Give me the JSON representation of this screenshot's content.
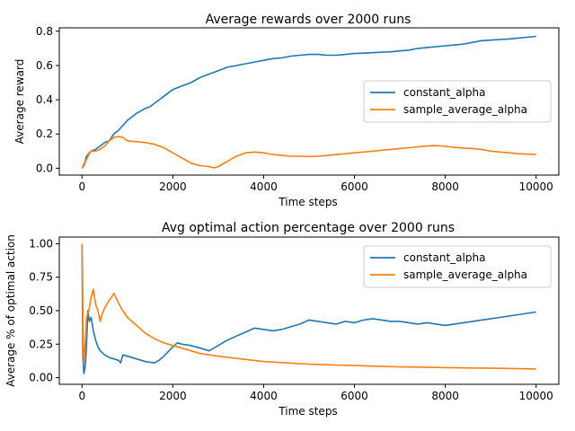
{
  "chart_data": [
    {
      "type": "line",
      "title": "Average rewards over 2000 runs",
      "xlabel": "Time steps",
      "ylabel": "Average reward",
      "xlim": [
        -500,
        10500
      ],
      "ylim": [
        -0.04,
        0.82
      ],
      "xticks": [
        0,
        2000,
        4000,
        6000,
        8000,
        10000
      ],
      "xtick_labels": [
        "0",
        "2000",
        "4000",
        "6000",
        "8000",
        "10000"
      ],
      "yticks": [
        0.0,
        0.2,
        0.4,
        0.6,
        0.8
      ],
      "ytick_labels": [
        "0.0",
        "0.2",
        "0.4",
        "0.6",
        "0.8"
      ],
      "legend_position": "center-right",
      "grid": false,
      "series": [
        {
          "name": "constant_alpha",
          "color": "#1f77b4",
          "x": [
            0,
            50,
            100,
            200,
            300,
            400,
            500,
            600,
            700,
            800,
            900,
            1000,
            1200,
            1400,
            1500,
            1600,
            1700,
            1800,
            2000,
            2200,
            2400,
            2600,
            2800,
            3000,
            3200,
            3400,
            3600,
            3800,
            4000,
            4200,
            4400,
            4600,
            4800,
            5000,
            5200,
            5400,
            5600,
            5800,
            6000,
            6200,
            6400,
            6600,
            6800,
            7000,
            7200,
            7400,
            7600,
            7800,
            8000,
            8200,
            8400,
            8600,
            8800,
            9000,
            9200,
            9400,
            9600,
            9800,
            10000
          ],
          "values": [
            0.0,
            0.02,
            0.07,
            0.1,
            0.11,
            0.13,
            0.15,
            0.16,
            0.2,
            0.22,
            0.25,
            0.28,
            0.32,
            0.35,
            0.36,
            0.38,
            0.4,
            0.42,
            0.46,
            0.48,
            0.5,
            0.53,
            0.55,
            0.57,
            0.59,
            0.6,
            0.61,
            0.62,
            0.63,
            0.64,
            0.645,
            0.655,
            0.66,
            0.665,
            0.665,
            0.66,
            0.66,
            0.665,
            0.67,
            0.672,
            0.675,
            0.678,
            0.68,
            0.685,
            0.69,
            0.7,
            0.705,
            0.71,
            0.715,
            0.72,
            0.725,
            0.735,
            0.745,
            0.748,
            0.752,
            0.755,
            0.76,
            0.765,
            0.77
          ]
        },
        {
          "name": "sample_average_alpha",
          "color": "#ff7f0e",
          "x": [
            0,
            50,
            100,
            150,
            200,
            300,
            400,
            500,
            600,
            700,
            800,
            900,
            1000,
            1200,
            1400,
            1600,
            1800,
            2000,
            2200,
            2400,
            2600,
            2800,
            2900,
            3000,
            3200,
            3400,
            3600,
            3800,
            4000,
            4200,
            4400,
            4600,
            4800,
            5000,
            5200,
            5400,
            5600,
            5800,
            6000,
            6200,
            6400,
            6600,
            6800,
            7000,
            7200,
            7400,
            7600,
            7800,
            8000,
            8200,
            8400,
            8600,
            8800,
            9000,
            9200,
            9400,
            9600,
            9800,
            10000
          ],
          "values": [
            0.0,
            0.03,
            0.05,
            0.08,
            0.1,
            0.1,
            0.11,
            0.13,
            0.16,
            0.18,
            0.185,
            0.18,
            0.16,
            0.155,
            0.15,
            0.14,
            0.12,
            0.09,
            0.06,
            0.03,
            0.015,
            0.01,
            0.002,
            0.01,
            0.04,
            0.07,
            0.09,
            0.095,
            0.09,
            0.08,
            0.075,
            0.07,
            0.07,
            0.068,
            0.07,
            0.075,
            0.08,
            0.085,
            0.09,
            0.095,
            0.1,
            0.105,
            0.11,
            0.115,
            0.12,
            0.125,
            0.13,
            0.132,
            0.128,
            0.122,
            0.118,
            0.115,
            0.11,
            0.1,
            0.095,
            0.09,
            0.085,
            0.082,
            0.08
          ]
        }
      ]
    },
    {
      "type": "line",
      "title": "Avg optimal action percentage over 2000 runs",
      "xlabel": "Time steps",
      "ylabel": "Average % of optimal action",
      "xlim": [
        -500,
        10500
      ],
      "ylim": [
        -0.05,
        1.05
      ],
      "xticks": [
        0,
        2000,
        4000,
        6000,
        8000,
        10000
      ],
      "xtick_labels": [
        "0",
        "2000",
        "4000",
        "6000",
        "8000",
        "10000"
      ],
      "yticks": [
        0.0,
        0.25,
        0.5,
        0.75,
        1.0
      ],
      "ytick_labels": [
        "0.00",
        "0.25",
        "0.50",
        "0.75",
        "1.00"
      ],
      "legend_position": "upper-right",
      "grid": false,
      "series": [
        {
          "name": "constant_alpha",
          "color": "#1f77b4",
          "x": [
            0,
            10,
            20,
            40,
            60,
            80,
            100,
            130,
            160,
            200,
            250,
            300,
            350,
            400,
            500,
            600,
            700,
            800,
            850,
            900,
            1000,
            1200,
            1400,
            1500,
            1600,
            1700,
            1800,
            2000,
            2100,
            2200,
            2400,
            2600,
            2800,
            3000,
            3200,
            3400,
            3600,
            3800,
            4000,
            4200,
            4400,
            4600,
            4800,
            5000,
            5200,
            5400,
            5600,
            5800,
            6000,
            6200,
            6400,
            6600,
            6800,
            7000,
            7200,
            7400,
            7600,
            7800,
            8000,
            8200,
            8400,
            8600,
            8800,
            9000,
            9200,
            9400,
            9600,
            9800,
            10000
          ],
          "values": [
            1.0,
            0.5,
            0.15,
            0.03,
            0.06,
            0.12,
            0.25,
            0.5,
            0.42,
            0.45,
            0.35,
            0.28,
            0.23,
            0.2,
            0.17,
            0.15,
            0.14,
            0.13,
            0.11,
            0.17,
            0.16,
            0.14,
            0.12,
            0.115,
            0.11,
            0.13,
            0.16,
            0.23,
            0.26,
            0.25,
            0.24,
            0.22,
            0.2,
            0.24,
            0.28,
            0.31,
            0.34,
            0.37,
            0.36,
            0.35,
            0.36,
            0.38,
            0.4,
            0.43,
            0.42,
            0.41,
            0.4,
            0.42,
            0.41,
            0.43,
            0.44,
            0.43,
            0.42,
            0.42,
            0.41,
            0.4,
            0.41,
            0.4,
            0.39,
            0.4,
            0.41,
            0.42,
            0.43,
            0.44,
            0.45,
            0.46,
            0.47,
            0.48,
            0.49
          ]
        },
        {
          "name": "sample_average_alpha",
          "color": "#ff7f0e",
          "x": [
            0,
            10,
            20,
            40,
            60,
            80,
            100,
            150,
            200,
            250,
            300,
            350,
            400,
            450,
            500,
            600,
            650,
            700,
            800,
            900,
            1000,
            1200,
            1400,
            1600,
            1800,
            2000,
            2200,
            2400,
            2600,
            2800,
            3000,
            3500,
            4000,
            4500,
            5000,
            5500,
            6000,
            6500,
            7000,
            7500,
            8000,
            8500,
            9000,
            9500,
            10000
          ],
          "values": [
            1.0,
            0.8,
            0.4,
            0.1,
            0.2,
            0.3,
            0.45,
            0.5,
            0.6,
            0.66,
            0.55,
            0.5,
            0.42,
            0.48,
            0.52,
            0.58,
            0.6,
            0.63,
            0.56,
            0.5,
            0.45,
            0.39,
            0.33,
            0.29,
            0.26,
            0.24,
            0.22,
            0.2,
            0.18,
            0.17,
            0.16,
            0.14,
            0.12,
            0.11,
            0.1,
            0.095,
            0.09,
            0.085,
            0.08,
            0.078,
            0.075,
            0.072,
            0.07,
            0.068,
            0.065
          ]
        }
      ]
    }
  ]
}
